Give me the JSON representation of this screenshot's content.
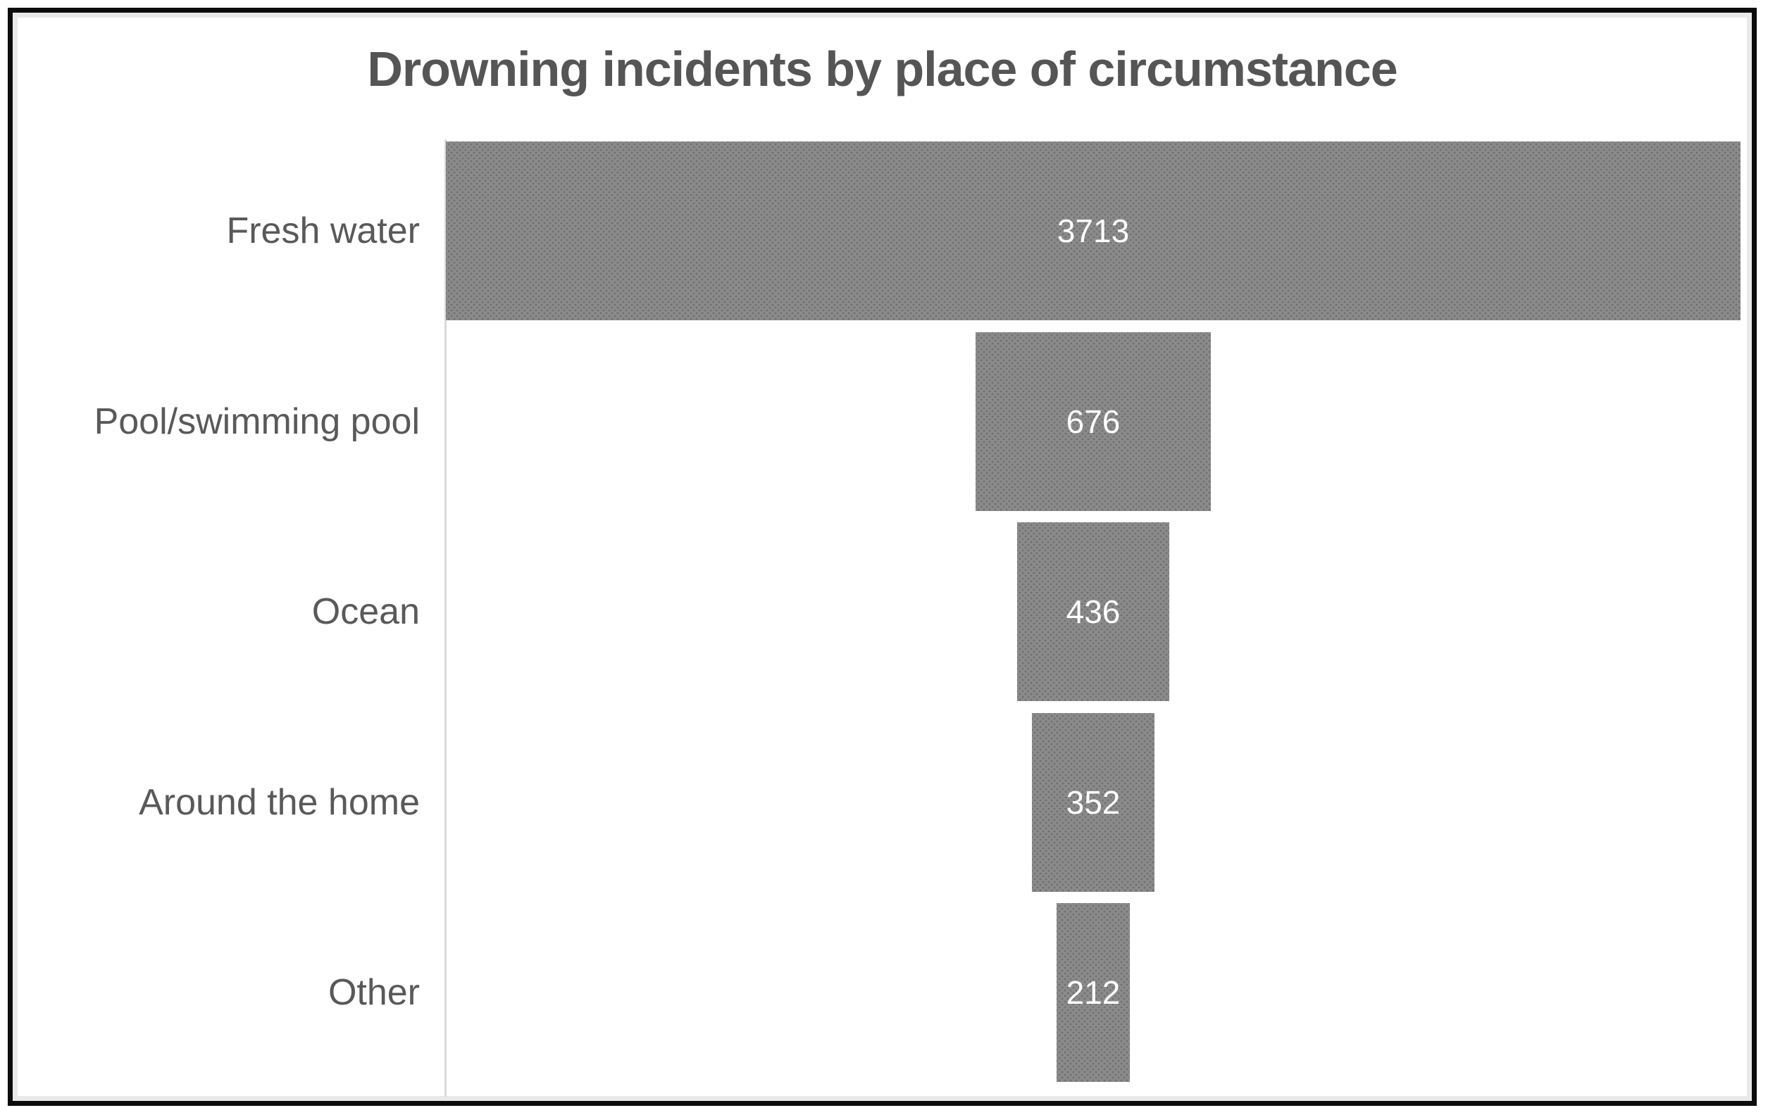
{
  "chart_data": {
    "type": "bar",
    "subtype": "funnel-centered-horizontal",
    "title": "Drowning incidents by place of circumstance",
    "categories": [
      "Fresh water",
      "Pool/swimming pool",
      "Ocean",
      "Around the home",
      "Other"
    ],
    "values": [
      3713,
      676,
      436,
      352,
      212
    ],
    "data_labels": [
      3713,
      676,
      436,
      352,
      212
    ],
    "xlabel": "",
    "ylabel": "",
    "xlim": [
      0,
      3713
    ],
    "grid": false,
    "legend": false,
    "layout_hints": {
      "bars_centered_on_common_axis": true,
      "value_labels_position": "inside-center",
      "category_labels_position": "left-of-axis"
    },
    "colors": {
      "bar_fill": "#8b8b8b",
      "bar_texture_dot": "#5a5a5a",
      "title_text": "#555555",
      "category_text": "#595959",
      "value_text": "#ffffff",
      "axis_line": "#d9d9d9",
      "frame_border": "#0c0c0c",
      "background": "#ffffff"
    }
  }
}
